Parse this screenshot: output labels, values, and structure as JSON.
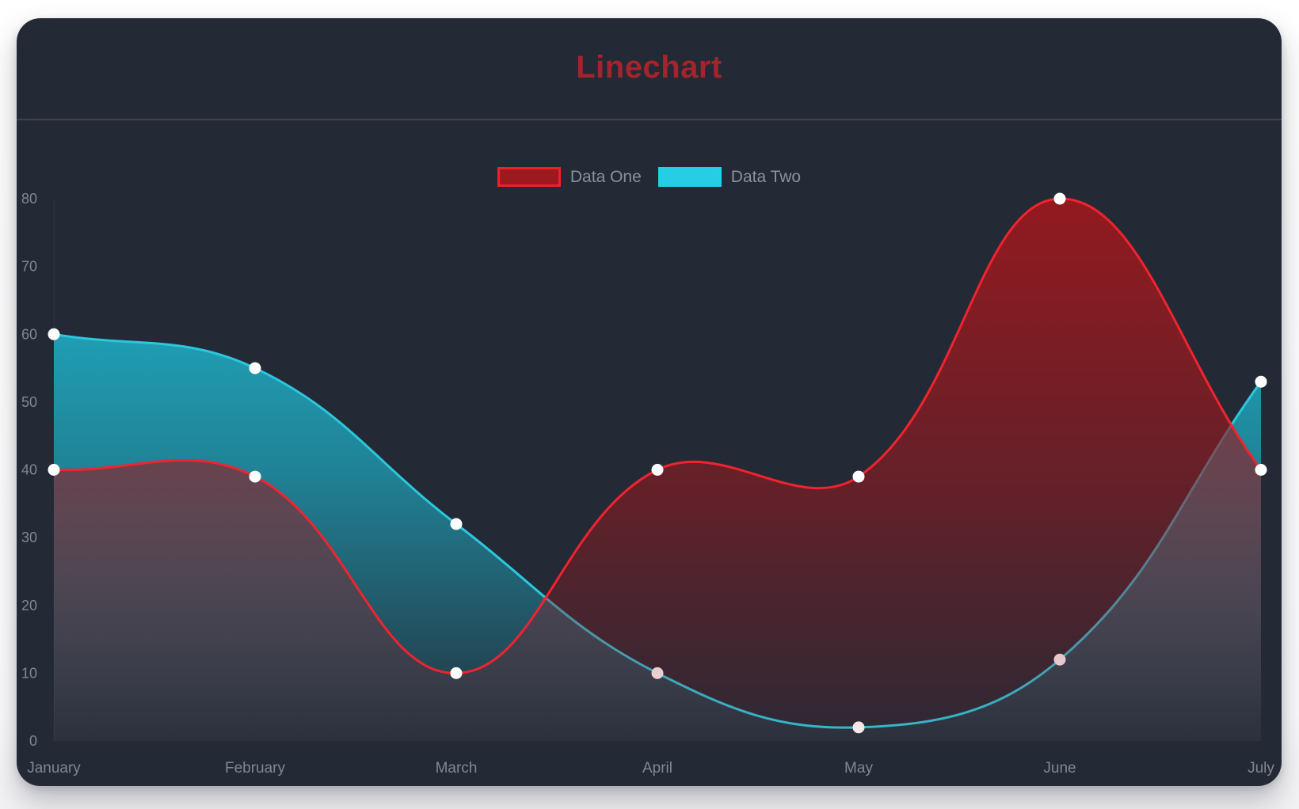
{
  "window": {
    "background": "#ffffff"
  },
  "card": {
    "background": "#232a36",
    "divider_color": "#3a4257"
  },
  "title": {
    "text": "Linechart",
    "color": "#a3242b"
  },
  "legend": {
    "text_color": "#8b9099",
    "items": [
      {
        "label": "Data One",
        "swatch_fill": "#9c191f",
        "swatch_border": "#f0202a"
      },
      {
        "label": "Data Two",
        "swatch_fill": "#26cde4",
        "swatch_border": "#1fd2ea"
      }
    ]
  },
  "chart_data": {
    "type": "line",
    "title": "Linechart",
    "categories": [
      "January",
      "February",
      "March",
      "April",
      "May",
      "June",
      "July"
    ],
    "series": [
      {
        "name": "Data One",
        "values": [
          40,
          39,
          10,
          40,
          39,
          80,
          40
        ],
        "line_color": "#f2232e",
        "fill_top": "rgba(150,25,31,0.97)",
        "fill_mid": "rgba(150,25,31,0.60)",
        "fill_bottom": "rgba(150,25,31,0.08)",
        "point_color": "#ffffff"
      },
      {
        "name": "Data Two",
        "values": [
          60,
          55,
          32,
          10,
          2,
          12,
          53
        ],
        "line_color": "#2bc7dd",
        "fill_top": "rgba(30,194,219,0.95)",
        "fill_mid": "rgba(30,194,219,0.58)",
        "fill_bottom": "rgba(30,194,219,0.05)",
        "point_color": "#ffffff"
      }
    ],
    "xlabel": "",
    "ylabel": "",
    "ylim": [
      0,
      80
    ],
    "yticks": [
      0,
      10,
      20,
      30,
      40,
      50,
      60,
      70,
      80
    ],
    "grid": false,
    "legend_position": "top",
    "curve_tension": 0.4,
    "axis_text_color": "#82878f",
    "axis_line_color": "#2b3342",
    "point_radius": 7.5,
    "line_width": 3
  }
}
